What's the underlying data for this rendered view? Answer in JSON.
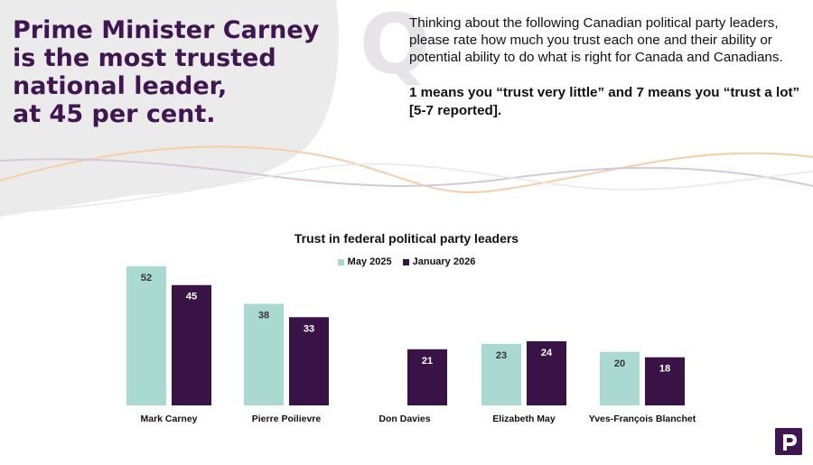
{
  "headline": {
    "line1": "Prime Minister Carney",
    "line2": "is the most trusted",
    "line3": "national leader,",
    "line4": "at 45 per cent."
  },
  "question": {
    "line1": "Thinking about the following Canadian political party leaders,",
    "line2": "please rate how much you trust each one and their ability or",
    "line3": "potential ability to do what is right for Canada and Canadians.",
    "scale_line1": "1 means you “trust very little” and 7 means you “trust a lot”",
    "scale_line2": "[5-7 reported]."
  },
  "colors": {
    "brand": "#3f1650",
    "series_may": "#a9d9d0",
    "series_jan": "#3a1346"
  },
  "chart_data": {
    "type": "bar",
    "title": "Trust in federal political party leaders",
    "categories": [
      "Mark Carney",
      "Pierre Poilievre",
      "Don Davies",
      "Elizabeth May",
      "Yves-François Blanchet"
    ],
    "series": [
      {
        "name": "May 2025",
        "values": [
          52,
          38,
          null,
          23,
          20
        ]
      },
      {
        "name": "January 2026",
        "values": [
          45,
          33,
          21,
          24,
          18
        ]
      }
    ],
    "xlabel": "",
    "ylabel": "",
    "ylim": [
      0,
      55
    ],
    "legend": "top-center",
    "grid": false
  }
}
